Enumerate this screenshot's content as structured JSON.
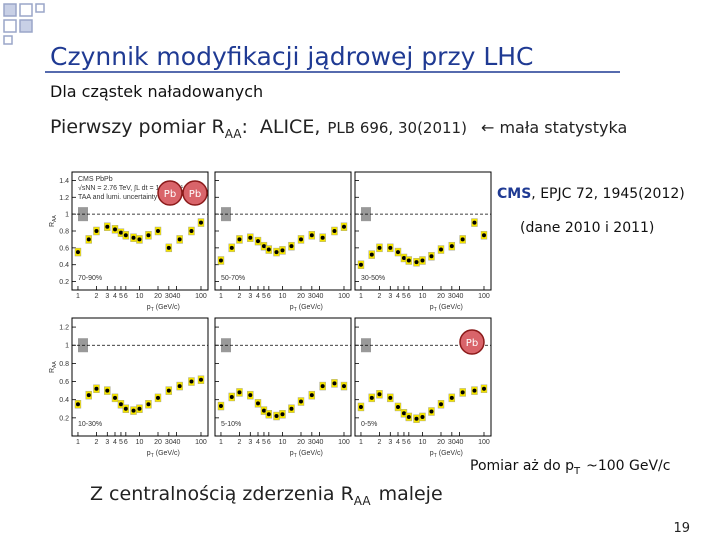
{
  "header": {
    "title": "Czynnik modyfikacji jądrowej przy LHC",
    "subtitle": "Dla cząstek naładowanych"
  },
  "first_measurement": {
    "text": "Pierwszy pomiar R",
    "sub": "AA",
    "sep": ":",
    "ref": "ALICE,",
    "citation": "PLB 696, 30(2011)",
    "note": "← mała statystyka"
  },
  "cms": {
    "name": "CMS",
    "citation": ", EPJC 72, 1945(2012)",
    "data_note": "(dane 2010 i 2011)"
  },
  "figure": {
    "y_label": "R",
    "y_label_sub": "AA",
    "x_label": "p",
    "x_label_sub": "T",
    "x_label_unit": "(GeV/c)",
    "log_x": true,
    "xlim": [
      0.8,
      130
    ],
    "xticks": [
      1,
      2,
      3,
      4,
      5,
      6,
      10,
      20,
      30,
      40,
      100
    ],
    "x": [
      1,
      1.5,
      2,
      3,
      4,
      5,
      6,
      8,
      10,
      14,
      20,
      30,
      45,
      70,
      100
    ],
    "notes": [
      "CMS PbPb",
      "√sNN = 2.76 TeV, ∫L dt = 150 μb⁻¹",
      "TAA and lumi. uncertainty"
    ],
    "badges": [
      "Pb",
      "Pb",
      "Pb"
    ],
    "rows": [
      {
        "ylim": [
          0.1,
          1.5
        ],
        "yticks": [
          0.2,
          0.4,
          0.6,
          0.8,
          1,
          1.2,
          1.4
        ],
        "panels": [
          {
            "label": "70-90%",
            "values": [
              0.55,
              0.7,
              0.8,
              0.85,
              0.82,
              0.78,
              0.75,
              0.72,
              0.7,
              0.75,
              0.8,
              0.6,
              0.7,
              0.8,
              0.9
            ]
          },
          {
            "label": "50-70%",
            "values": [
              0.45,
              0.6,
              0.7,
              0.72,
              0.68,
              0.62,
              0.58,
              0.55,
              0.57,
              0.62,
              0.7,
              0.75,
              0.72,
              0.8,
              0.85
            ]
          },
          {
            "label": "30-50%",
            "values": [
              0.4,
              0.52,
              0.6,
              0.6,
              0.55,
              0.48,
              0.45,
              0.43,
              0.45,
              0.5,
              0.58,
              0.62,
              0.7,
              0.9,
              0.75
            ]
          }
        ]
      },
      {
        "ylim": [
          0,
          1.3
        ],
        "yticks": [
          0.2,
          0.4,
          0.6,
          0.8,
          1,
          1.2
        ],
        "panels": [
          {
            "label": "10-30%",
            "values": [
              0.35,
              0.45,
              0.52,
              0.5,
              0.42,
              0.35,
              0.3,
              0.28,
              0.3,
              0.35,
              0.42,
              0.5,
              0.55,
              0.6,
              0.62
            ]
          },
          {
            "label": "5-10%",
            "values": [
              0.33,
              0.43,
              0.48,
              0.45,
              0.36,
              0.28,
              0.24,
              0.22,
              0.24,
              0.3,
              0.38,
              0.45,
              0.55,
              0.58,
              0.55
            ]
          },
          {
            "label": "0-5%",
            "values": [
              0.32,
              0.42,
              0.46,
              0.42,
              0.32,
              0.25,
              0.21,
              0.19,
              0.21,
              0.27,
              0.35,
              0.42,
              0.48,
              0.5,
              0.52
            ]
          }
        ]
      }
    ]
  },
  "pomiar": {
    "text": "Pomiar aż do p",
    "sub": "T",
    "rest": "~100 GeV/c"
  },
  "conclusion": {
    "text": "Z centralnością zderzenia R",
    "sub": "AA",
    "rest": "maleje"
  },
  "page_number": "19"
}
